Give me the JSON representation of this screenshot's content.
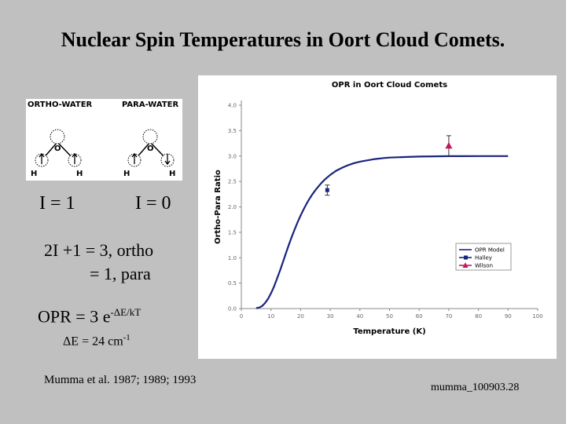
{
  "slide": {
    "title": "Nuclear Spin Temperatures in Oort Cloud Comets.",
    "ortho_label": "ORTHO-WATER",
    "para_label": "PARA-WATER",
    "atom_o": "O",
    "atom_h": "H",
    "spin_ortho": "I = 1",
    "spin_para": "I = 0",
    "stat_line1": "2I +1 = 3, ortho",
    "stat_line2": "= 1, para",
    "opr_base": "OPR = 3 e",
    "opr_exp": "-ΔE/kT",
    "delta_base": "ΔE = 24 cm",
    "delta_exp": "-1",
    "citation": "Mumma et al. 1987; 1989; 1993",
    "slide_id": "mumma_100903.28"
  },
  "chart_data": {
    "type": "line",
    "title": "OPR in Oort Cloud Comets",
    "xlabel": "Temperature (K)",
    "ylabel": "Ortho-Para Ratio",
    "xlim": [
      0,
      100
    ],
    "ylim": [
      0,
      4
    ],
    "xticks": [
      "0",
      "10",
      "20",
      "30",
      "40",
      "50",
      "60",
      "70",
      "80",
      "90",
      "100"
    ],
    "yticks": [
      "0.0",
      "0.5",
      "1.0",
      "1.5",
      "2.0",
      "2.5",
      "3.0",
      "3.5",
      "4.0"
    ],
    "grid": false,
    "legend_position": "bottom-right",
    "series": [
      {
        "name": "OPR Model",
        "color": "#1a237e",
        "x": [
          5,
          6,
          7,
          8,
          9,
          10,
          11,
          12,
          13,
          14,
          15,
          16,
          17,
          18,
          19,
          20,
          21,
          22,
          23,
          24,
          25,
          26,
          27,
          28,
          30,
          32,
          34,
          36,
          38,
          40,
          42,
          45,
          48,
          50,
          55,
          60,
          65,
          70,
          75,
          80,
          85,
          90
        ],
        "y": [
          0.01,
          0.02,
          0.05,
          0.11,
          0.19,
          0.3,
          0.43,
          0.58,
          0.74,
          0.91,
          1.08,
          1.25,
          1.41,
          1.56,
          1.7,
          1.83,
          1.95,
          2.06,
          2.16,
          2.25,
          2.33,
          2.4,
          2.47,
          2.53,
          2.63,
          2.71,
          2.77,
          2.82,
          2.86,
          2.89,
          2.91,
          2.94,
          2.96,
          2.97,
          2.98,
          2.99,
          2.995,
          2.997,
          2.998,
          2.999,
          3.0,
          3.0
        ]
      },
      {
        "name": "Halley",
        "color": "#1a237e",
        "marker": "square",
        "points": [
          {
            "x": 29,
            "y": 2.33,
            "err": 0.1
          }
        ]
      },
      {
        "name": "Wilson",
        "color": "#c2185b",
        "marker": "triangle",
        "points": [
          {
            "x": 70,
            "y": 3.2,
            "err": 0.2
          }
        ]
      }
    ]
  }
}
